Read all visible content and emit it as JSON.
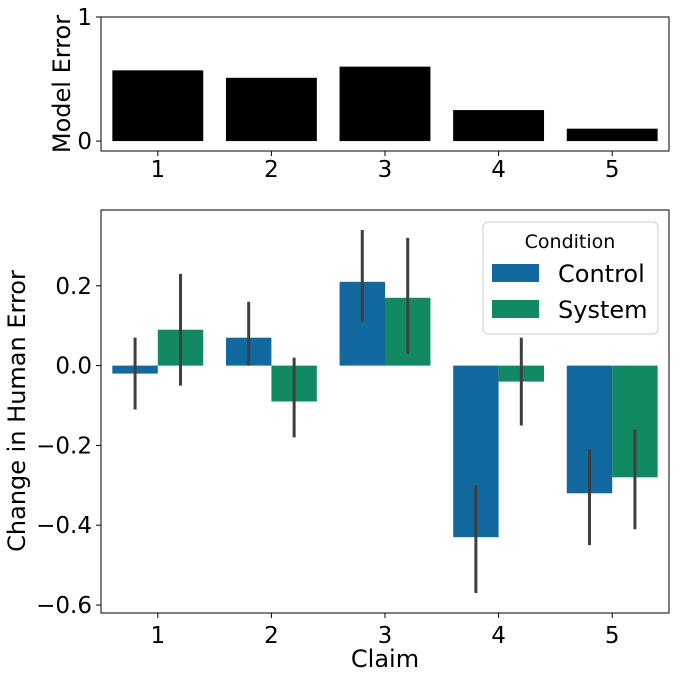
{
  "chart_data": [
    {
      "type": "bar",
      "categories": [
        "1",
        "2",
        "3",
        "4",
        "5"
      ],
      "values": [
        0.57,
        0.51,
        0.6,
        0.25,
        0.1
      ],
      "ylabel": "Model Error",
      "ylim": [
        -0.08,
        1.0
      ],
      "yticks": [
        "0",
        "1"
      ],
      "ytick_values": [
        0,
        1
      ],
      "grid": false,
      "color": "#000000"
    },
    {
      "type": "bar",
      "categories": [
        "1",
        "2",
        "3",
        "4",
        "5"
      ],
      "xlabel": "Claim",
      "ylabel": "Change in Human Error",
      "ylim": [
        -0.62,
        0.39
      ],
      "yticks": [
        "−0.6",
        "−0.4",
        "−0.2",
        "0.0",
        "0.2"
      ],
      "ytick_values": [
        -0.6,
        -0.4,
        -0.2,
        0.0,
        0.2
      ],
      "grid": false,
      "legend": {
        "title": "Condition",
        "placement": "top-right"
      },
      "series": [
        {
          "name": "Control",
          "color": "#1269a0",
          "values": [
            -0.02,
            0.07,
            0.21,
            -0.43,
            -0.32
          ],
          "ci_low": [
            -0.11,
            0.0,
            0.11,
            -0.57,
            -0.45
          ],
          "ci_high": [
            0.07,
            0.16,
            0.34,
            -0.3,
            -0.21
          ]
        },
        {
          "name": "System",
          "color": "#118a63",
          "values": [
            0.09,
            -0.09,
            0.17,
            -0.04,
            -0.28
          ],
          "ci_low": [
            -0.05,
            -0.18,
            0.03,
            -0.15,
            -0.41
          ],
          "ci_high": [
            0.23,
            0.02,
            0.32,
            0.07,
            -0.16
          ]
        }
      ]
    }
  ]
}
